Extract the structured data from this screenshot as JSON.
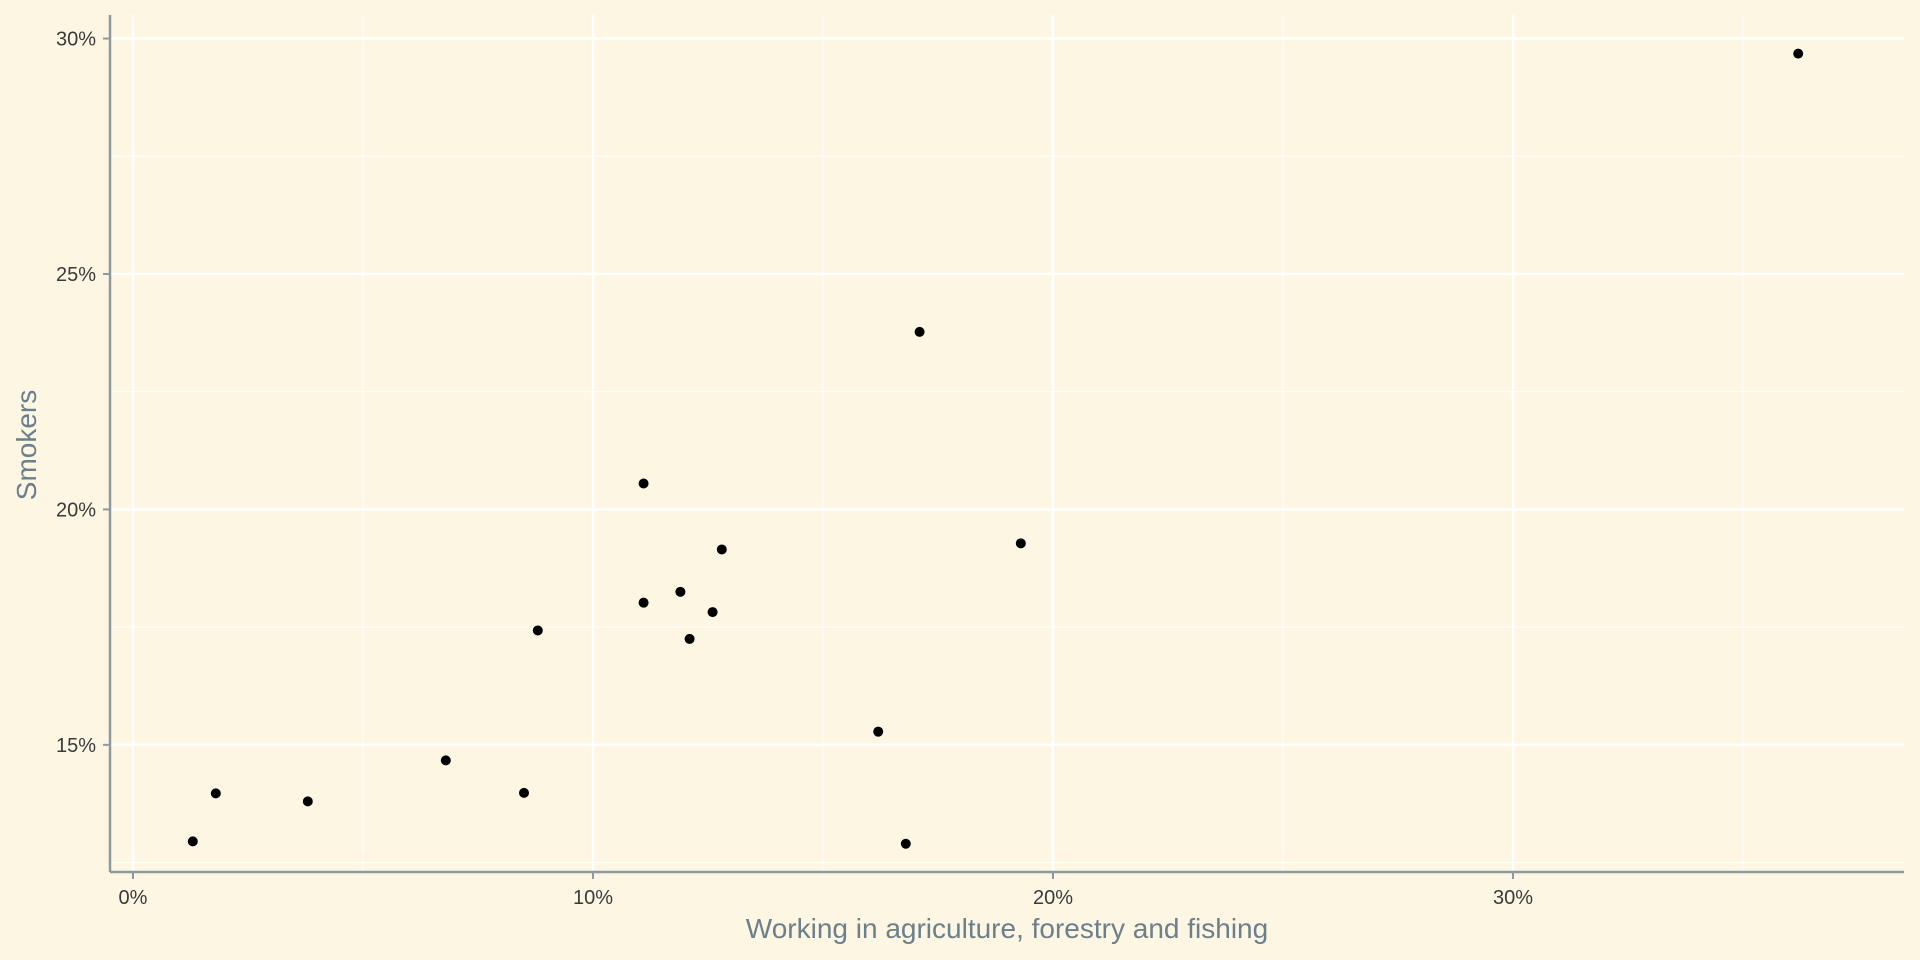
{
  "chart_data": {
    "type": "scatter",
    "title": "",
    "xlabel": "Working in agriculture, forestry and fishing",
    "ylabel": "Smokers",
    "xlim": [
      -0.5,
      38.5
    ],
    "ylim": [
      12.3,
      30.5
    ],
    "x_ticks": [
      0,
      10,
      20,
      30
    ],
    "x_tick_labels": [
      "0%",
      "10%",
      "20%",
      "30%"
    ],
    "y_ticks": [
      15,
      20,
      25,
      30
    ],
    "y_tick_labels": [
      "15%",
      "20%",
      "25%",
      "30%"
    ],
    "x_minor_gridlines": [
      5,
      15,
      25,
      35
    ],
    "y_minor_gridlines": [
      12.5,
      17.5,
      22.5,
      27.5
    ],
    "grid": true,
    "legend": "none",
    "colors": {
      "background": "#fdf6e3",
      "grid": "#ffffff",
      "axis": "#8a9a9e",
      "point": "#000000",
      "axis_title": "#6b7f8c",
      "tick_label": "#3a3a3a"
    },
    "points": [
      {
        "x": 1.3,
        "y": 12.95
      },
      {
        "x": 1.8,
        "y": 13.97
      },
      {
        "x": 3.8,
        "y": 13.8
      },
      {
        "x": 6.8,
        "y": 14.67
      },
      {
        "x": 8.5,
        "y": 13.98
      },
      {
        "x": 8.8,
        "y": 17.43
      },
      {
        "x": 11.1,
        "y": 20.55
      },
      {
        "x": 11.1,
        "y": 18.02
      },
      {
        "x": 11.9,
        "y": 18.25
      },
      {
        "x": 12.1,
        "y": 17.25
      },
      {
        "x": 12.6,
        "y": 17.82
      },
      {
        "x": 12.8,
        "y": 19.15
      },
      {
        "x": 16.2,
        "y": 15.28
      },
      {
        "x": 16.8,
        "y": 12.9
      },
      {
        "x": 17.1,
        "y": 23.77
      },
      {
        "x": 19.3,
        "y": 19.28
      },
      {
        "x": 36.2,
        "y": 29.68
      }
    ]
  }
}
